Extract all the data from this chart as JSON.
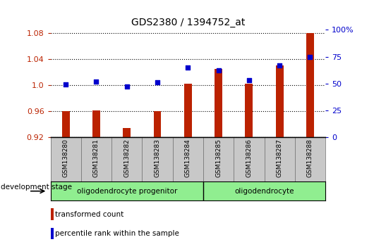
{
  "title": "GDS2380 / 1394752_at",
  "samples": [
    "GSM138280",
    "GSM138281",
    "GSM138282",
    "GSM138283",
    "GSM138284",
    "GSM138285",
    "GSM138286",
    "GSM138287",
    "GSM138288"
  ],
  "red_values": [
    0.96,
    0.961,
    0.934,
    0.96,
    1.002,
    1.025,
    1.002,
    1.03,
    1.08
  ],
  "blue_percentiles": [
    49,
    52,
    47,
    51,
    65,
    62,
    53,
    67,
    75
  ],
  "ylim_left": [
    0.92,
    1.085
  ],
  "ylim_right": [
    0,
    100
  ],
  "yticks_left": [
    0.92,
    0.96,
    1.0,
    1.04,
    1.08
  ],
  "yticks_right": [
    0,
    25,
    50,
    75,
    100
  ],
  "bar_color": "#bb2200",
  "dot_color": "#0000cc",
  "bar_baseline": 0.92,
  "group1_size": 5,
  "group2_size": 4,
  "group1_label": "oligodendrocyte progenitor",
  "group2_label": "oligodendrocyte",
  "group_bg_color": "#90ee90",
  "xtick_bg_color": "#c8c8c8",
  "legend_bar_label": "transformed count",
  "legend_dot_label": "percentile rank within the sample",
  "dev_stage_label": "development stage"
}
